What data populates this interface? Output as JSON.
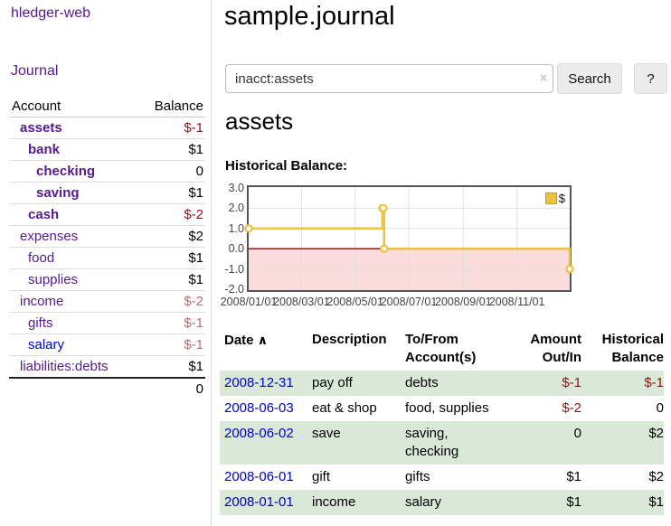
{
  "colors": {
    "link_purple": "#551a8b",
    "link_blue": "#0000cc",
    "negative": "#8b1414",
    "negative_faded": "#b96c6e",
    "row_green": "#d9e8d7",
    "chart_line": "#edc240",
    "chart_negative_fill": "#fadcdc",
    "chart_zero_line": "#8b0000",
    "chart_border": "#545454",
    "chart_grid": "#e0e0e0"
  },
  "sidebar": {
    "brand": "hledger-web",
    "nav_journal": "Journal",
    "accounts": {
      "col_account": "Account",
      "col_balance": "Balance",
      "rows": [
        {
          "name": "assets",
          "balance": "$-1"
        },
        {
          "name": "bank",
          "balance": "$1"
        },
        {
          "name": "checking",
          "balance": "0"
        },
        {
          "name": "saving",
          "balance": "$1"
        },
        {
          "name": "cash",
          "balance": "$-2"
        },
        {
          "name": "expenses",
          "balance": "$2"
        },
        {
          "name": "food",
          "balance": "$1"
        },
        {
          "name": "supplies",
          "balance": "$1"
        },
        {
          "name": "income",
          "balance": "$-2"
        },
        {
          "name": "gifts",
          "balance": "$-1"
        },
        {
          "name": "salary",
          "balance": "$-1"
        },
        {
          "name": "liabilities:debts",
          "balance": "$1"
        }
      ],
      "total": "0"
    }
  },
  "main": {
    "title": "sample.journal",
    "search": {
      "value": "inacct:assets",
      "clear_icon": "×",
      "button": "Search",
      "help": "?"
    },
    "heading": "assets",
    "chart_title": "Historical Balance:",
    "register": {
      "headers": {
        "date": "Date",
        "sort_icon": "∧",
        "description": "Description",
        "accounts": "To/From Account(s)",
        "amount": "Amount Out/In",
        "balance": "Historical Balance"
      },
      "rows": [
        {
          "date": "2008-12-31",
          "description": "pay off",
          "accounts": "debts",
          "amount": "$-1",
          "balance": "$-1"
        },
        {
          "date": "2008-06-03",
          "description": "eat & shop",
          "accounts": "food, supplies",
          "amount": "$-2",
          "balance": "0"
        },
        {
          "date": "2008-06-02",
          "description": "save",
          "accounts": "saving, checking",
          "amount": "0",
          "balance": "$2"
        },
        {
          "date": "2008-06-01",
          "description": "gift",
          "accounts": "gifts",
          "amount": "$1",
          "balance": "$2"
        },
        {
          "date": "2008-01-01",
          "description": "income",
          "accounts": "salary",
          "amount": "$1",
          "balance": "$1"
        }
      ]
    }
  },
  "chart_data": {
    "type": "line",
    "step": true,
    "title": "Historical Balance:",
    "legend": {
      "label": "$",
      "position": "top-right"
    },
    "x_range": [
      "2008-01-01",
      "2008-12-31"
    ],
    "ylim": [
      -2,
      3
    ],
    "y_ticks": [
      3.0,
      2.0,
      1.0,
      0.0,
      -1.0,
      -2.0
    ],
    "x_ticks": [
      "2008/01/01",
      "2008/03/01",
      "2008/05/01",
      "2008/07/01",
      "2008/09/01",
      "2008/11/01"
    ],
    "series": [
      {
        "name": "$",
        "color": "#edc240",
        "points": [
          [
            "2008-01-01",
            1
          ],
          [
            "2008-06-01",
            2
          ],
          [
            "2008-06-02",
            2
          ],
          [
            "2008-06-03",
            0
          ],
          [
            "2008-12-31",
            -1
          ]
        ]
      }
    ],
    "grid": true
  }
}
